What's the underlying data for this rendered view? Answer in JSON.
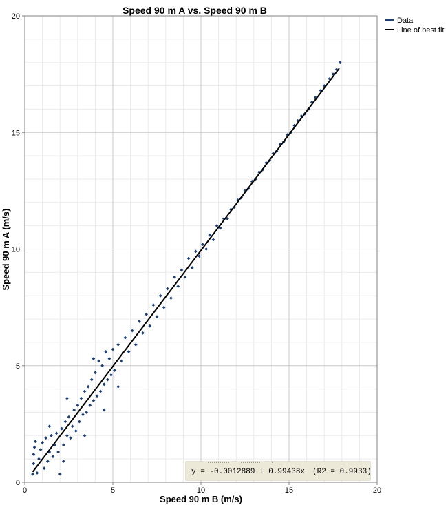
{
  "chart_data": {
    "type": "scatter",
    "title": "Speed 90 m A vs. Speed 90 m B",
    "xlabel": "Speed 90 m B (m/s)",
    "ylabel": "Speed 90 m A (m/s)",
    "xlim": [
      0,
      20
    ],
    "ylim": [
      0,
      20
    ],
    "xticks": [
      "0",
      "5",
      "10",
      "15",
      "20"
    ],
    "yticks": [
      "0",
      "5",
      "10",
      "15",
      "20"
    ],
    "grid": true,
    "legend_position": "top-right, outside plot",
    "series": [
      {
        "name": "Data",
        "type": "scatter",
        "color": "#1f3f6e",
        "points": [
          [
            0.45,
            0.35
          ],
          [
            0.5,
            0.8
          ],
          [
            0.5,
            1.2
          ],
          [
            0.55,
            1.5
          ],
          [
            0.6,
            1.75
          ],
          [
            0.7,
            0.4
          ],
          [
            0.8,
            1.0
          ],
          [
            0.9,
            1.4
          ],
          [
            1.0,
            1.7
          ],
          [
            1.1,
            0.6
          ],
          [
            1.2,
            1.9
          ],
          [
            1.3,
            0.9
          ],
          [
            1.4,
            1.3
          ],
          [
            1.5,
            2.0
          ],
          [
            1.6,
            1.1
          ],
          [
            1.7,
            1.6
          ],
          [
            1.8,
            2.1
          ],
          [
            1.9,
            1.3
          ],
          [
            2.0,
            0.35
          ],
          [
            2.1,
            2.3
          ],
          [
            2.2,
            1.6
          ],
          [
            2.3,
            2.6
          ],
          [
            2.4,
            2.0
          ],
          [
            2.5,
            2.8
          ],
          [
            2.6,
            1.9
          ],
          [
            2.7,
            2.4
          ],
          [
            2.8,
            3.1
          ],
          [
            2.9,
            2.2
          ],
          [
            3.0,
            3.3
          ],
          [
            3.1,
            2.6
          ],
          [
            3.2,
            3.6
          ],
          [
            3.3,
            2.9
          ],
          [
            3.4,
            3.9
          ],
          [
            3.5,
            3.0
          ],
          [
            3.6,
            4.1
          ],
          [
            3.7,
            3.3
          ],
          [
            3.8,
            4.4
          ],
          [
            3.9,
            3.5
          ],
          [
            4.0,
            4.7
          ],
          [
            4.1,
            3.7
          ],
          [
            4.2,
            5.2
          ],
          [
            4.3,
            3.9
          ],
          [
            4.4,
            5.0
          ],
          [
            4.5,
            4.2
          ],
          [
            4.6,
            5.6
          ],
          [
            4.7,
            4.4
          ],
          [
            4.8,
            5.3
          ],
          [
            4.9,
            4.6
          ],
          [
            5.0,
            5.7
          ],
          [
            5.1,
            4.8
          ],
          [
            5.3,
            5.9
          ],
          [
            5.5,
            5.2
          ],
          [
            5.7,
            6.2
          ],
          [
            5.9,
            5.6
          ],
          [
            6.1,
            6.5
          ],
          [
            6.3,
            5.9
          ],
          [
            6.5,
            6.9
          ],
          [
            6.7,
            6.4
          ],
          [
            6.9,
            7.2
          ],
          [
            7.1,
            6.7
          ],
          [
            7.3,
            7.6
          ],
          [
            7.5,
            7.1
          ],
          [
            7.7,
            8.0
          ],
          [
            7.9,
            7.5
          ],
          [
            8.1,
            8.3
          ],
          [
            8.3,
            7.9
          ],
          [
            8.5,
            8.8
          ],
          [
            8.7,
            8.4
          ],
          [
            8.9,
            9.1
          ],
          [
            9.1,
            8.8
          ],
          [
            9.3,
            9.6
          ],
          [
            9.5,
            9.2
          ],
          [
            9.7,
            9.9
          ],
          [
            9.9,
            9.7
          ],
          [
            10.1,
            10.2
          ],
          [
            10.3,
            10.0
          ],
          [
            10.5,
            10.6
          ],
          [
            10.7,
            10.4
          ],
          [
            10.9,
            11.0
          ],
          [
            11.1,
            10.9
          ],
          [
            11.3,
            11.3
          ],
          [
            11.5,
            11.3
          ],
          [
            11.7,
            11.7
          ],
          [
            11.9,
            11.8
          ],
          [
            12.1,
            12.1
          ],
          [
            12.3,
            12.2
          ],
          [
            12.5,
            12.5
          ],
          [
            12.7,
            12.6
          ],
          [
            12.9,
            12.9
          ],
          [
            13.1,
            13.0
          ],
          [
            13.3,
            13.3
          ],
          [
            13.5,
            13.4
          ],
          [
            13.7,
            13.7
          ],
          [
            13.9,
            13.8
          ],
          [
            14.1,
            14.1
          ],
          [
            14.3,
            14.2
          ],
          [
            14.5,
            14.5
          ],
          [
            14.7,
            14.6
          ],
          [
            14.9,
            14.9
          ],
          [
            15.1,
            15.0
          ],
          [
            15.3,
            15.3
          ],
          [
            15.5,
            15.5
          ],
          [
            15.7,
            15.7
          ],
          [
            15.9,
            15.8
          ],
          [
            16.1,
            16.0
          ],
          [
            16.3,
            16.3
          ],
          [
            16.5,
            16.5
          ],
          [
            16.8,
            16.8
          ],
          [
            17.0,
            17.0
          ],
          [
            17.3,
            17.3
          ],
          [
            17.5,
            17.5
          ],
          [
            17.7,
            17.7
          ],
          [
            17.9,
            18.0
          ],
          [
            2.2,
            0.9
          ],
          [
            1.4,
            2.4
          ],
          [
            3.4,
            2.0
          ],
          [
            2.4,
            3.6
          ],
          [
            4.5,
            3.1
          ],
          [
            3.9,
            5.3
          ],
          [
            5.3,
            4.1
          ]
        ]
      },
      {
        "name": "Line of best fit",
        "type": "line",
        "color": "#000000",
        "points": [
          [
            0.45,
            0.446
          ],
          [
            17.85,
            17.749
          ]
        ]
      }
    ],
    "annotation": {
      "equation": "y = -0.0012889 + 0.99438x",
      "r2": "(R2 = 0.9933)"
    }
  }
}
